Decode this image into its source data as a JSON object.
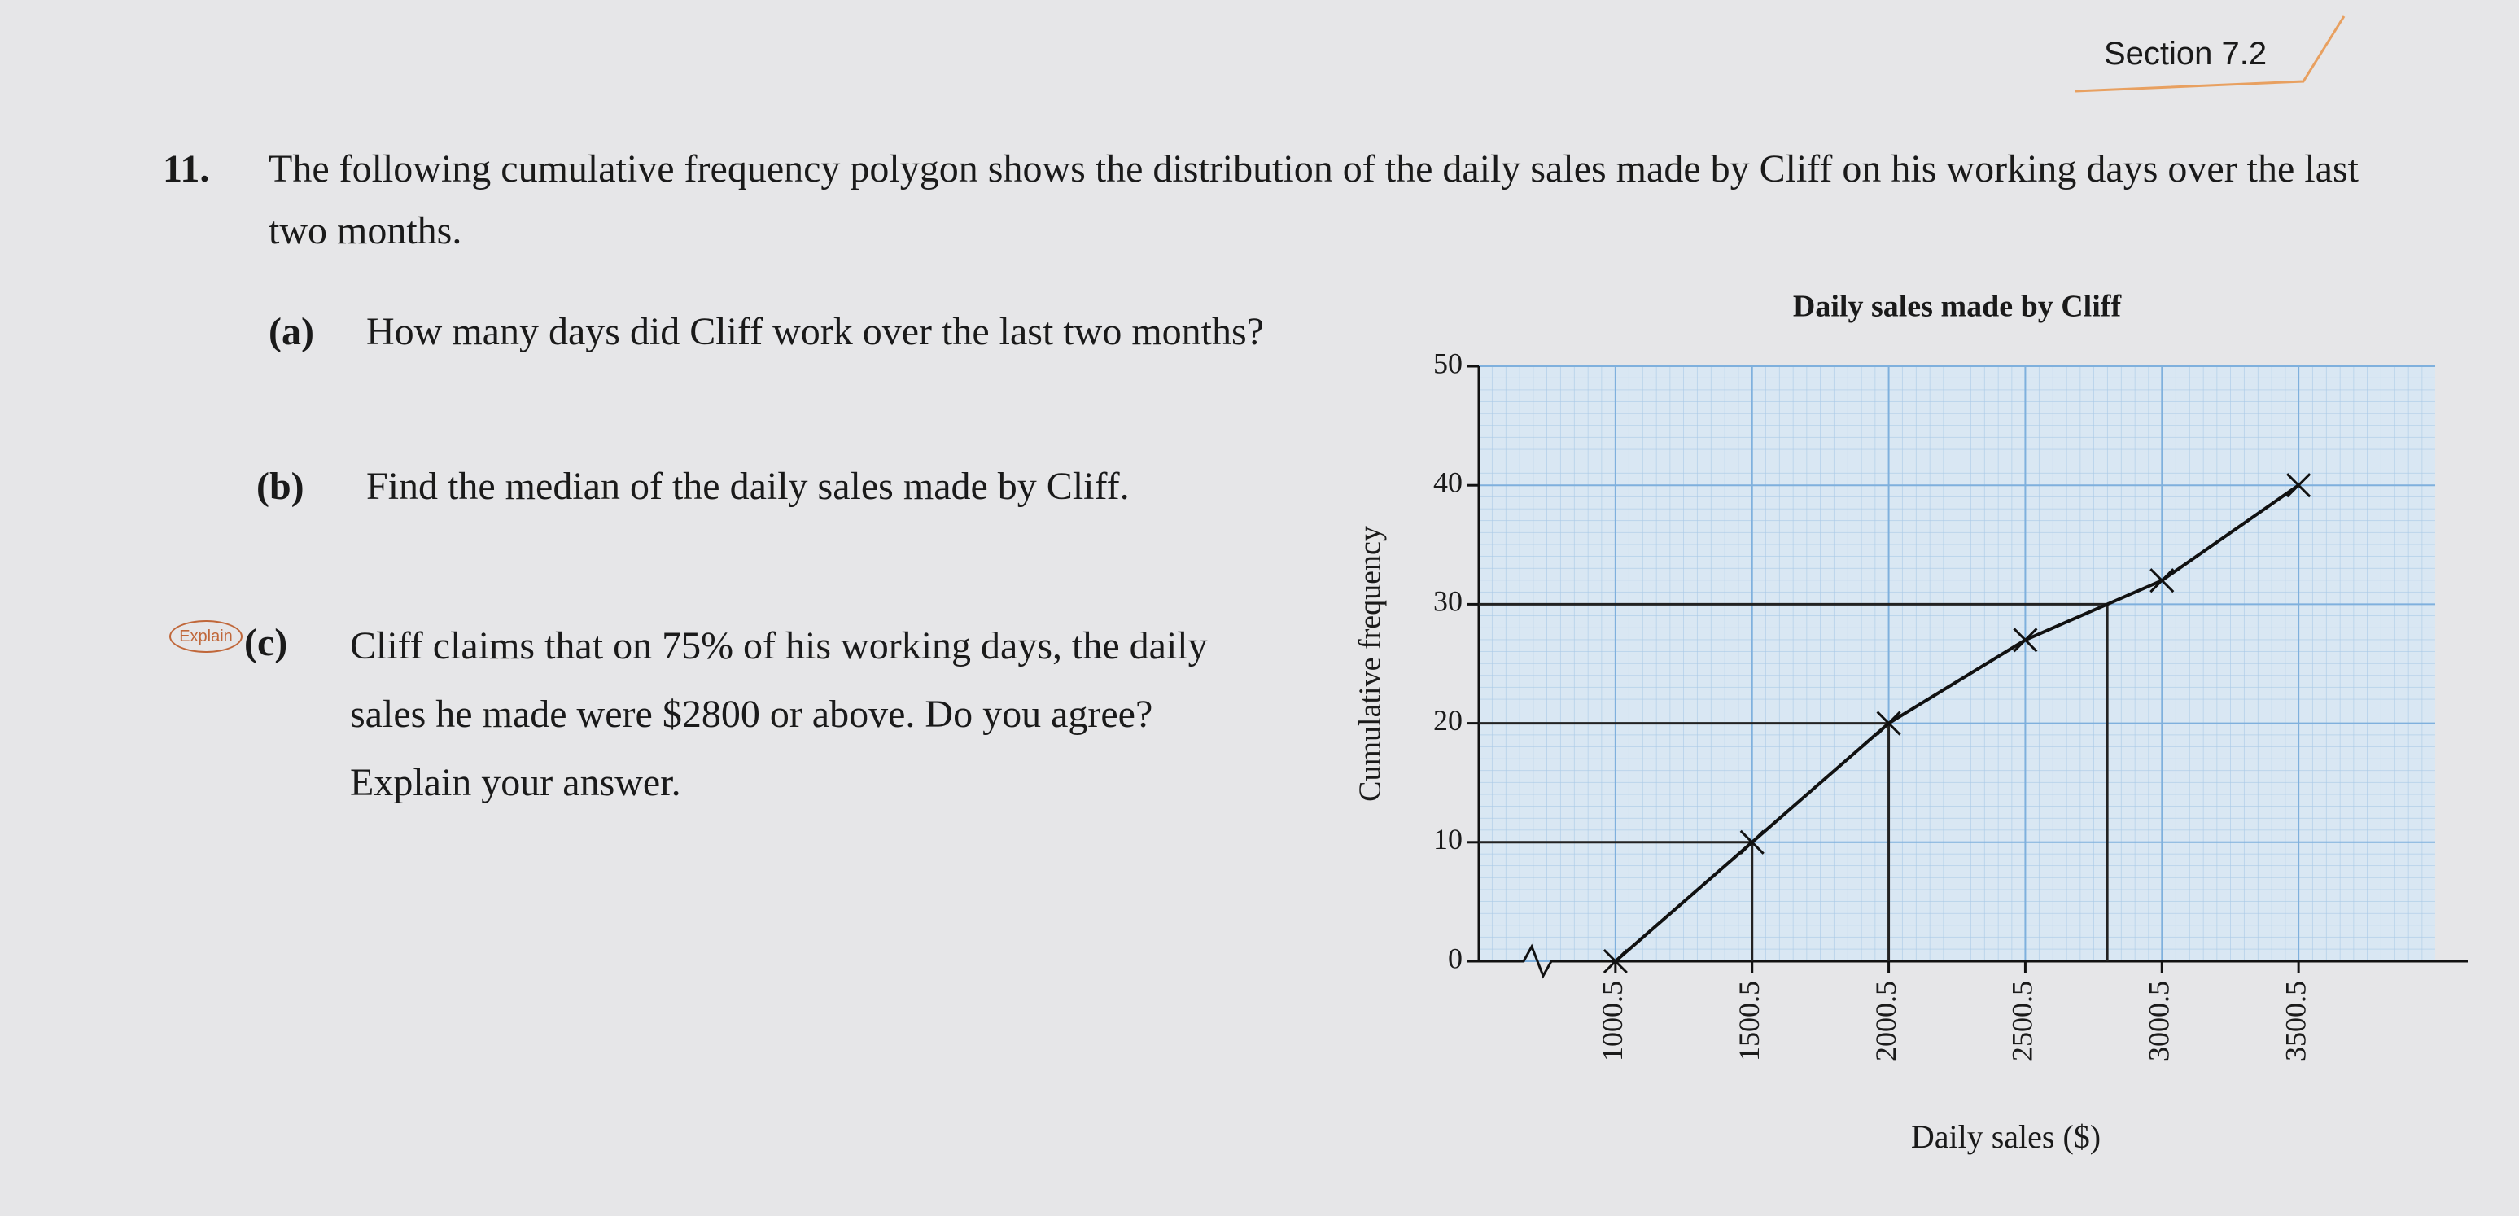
{
  "section": "Section 7.2",
  "question": {
    "number": "11.",
    "text": "The following cumulative frequency polygon shows the distribution of the daily sales made by Cliff on his working days over the last two months.",
    "badge": "Explain",
    "parts": [
      {
        "label": "(a)",
        "text": "How many days did Cliff work over the last two months?"
      },
      {
        "label": "(b)",
        "text": "Find the median of the daily sales made by Cliff."
      },
      {
        "label": "(c)",
        "text": "Cliff claims that on 75% of his working days, the daily sales he made were $2800 or above. Do you agree? Explain your answer."
      }
    ]
  },
  "chart_data": {
    "type": "line",
    "title": "Daily sales made by Cliff",
    "x_label": "Daily sales ($)",
    "y_label": "Cumulative frequency",
    "x": [
      1000.5,
      1500.5,
      2000.5,
      2500.5,
      3000.5,
      3500.5
    ],
    "values": [
      0,
      10,
      20,
      27,
      32,
      40
    ],
    "color": "#111111",
    "xlim": [
      500.5,
      4000.5
    ],
    "xticks": [
      1000.5,
      1500.5,
      2000.5,
      2500.5,
      3000.5,
      3500.5
    ],
    "ylim": [
      0,
      50
    ],
    "yticks": [
      0,
      10,
      20,
      30,
      40,
      50
    ],
    "grid": true
  }
}
